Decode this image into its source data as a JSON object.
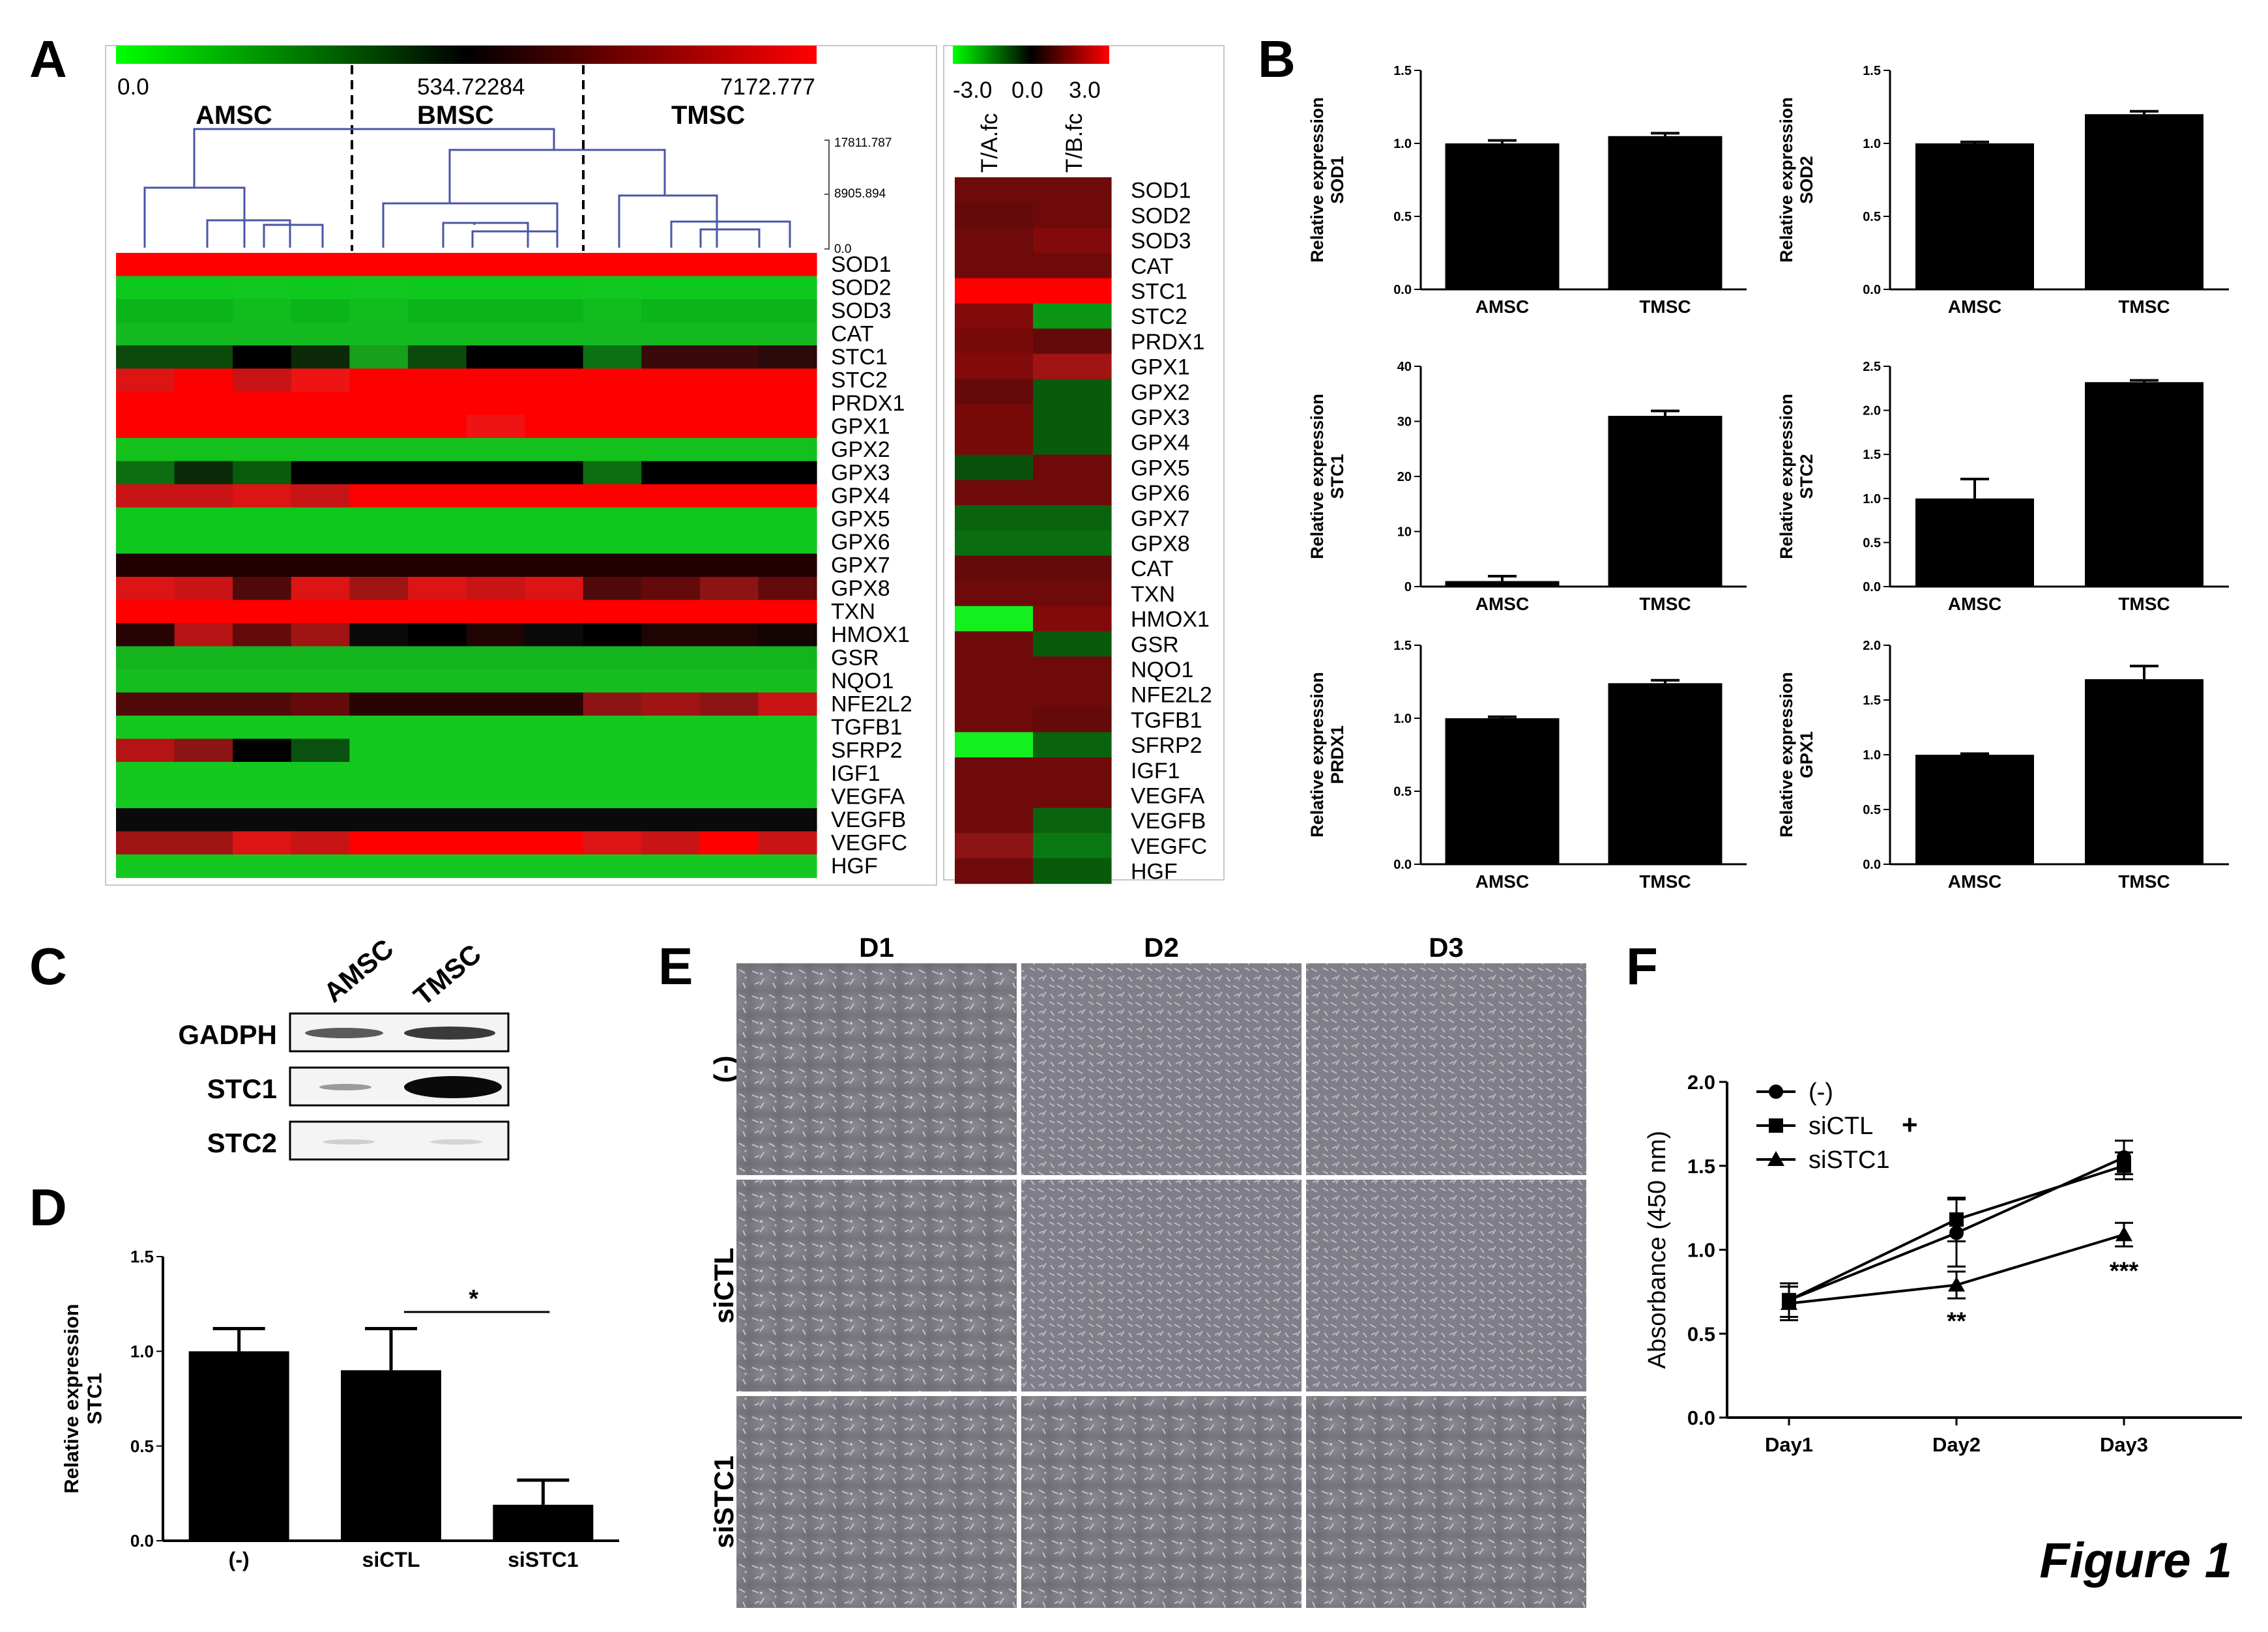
{
  "figure_label": "Figure 1",
  "panels": {
    "A": "A",
    "B": "B",
    "C": "C",
    "D": "D",
    "E": "E",
    "F": "F"
  },
  "panel_a": {
    "colorbar_labels": [
      "0.0",
      "534.72284",
      "7172.777"
    ],
    "groups": [
      "AMSC",
      "BMSC",
      "TMSC"
    ],
    "dendro_scale": [
      "17811.787",
      "8905.894",
      "0.0"
    ],
    "genes": [
      "SOD1",
      "SOD2",
      "SOD3",
      "CAT",
      "STC1",
      "STC2",
      "PRDX1",
      "GPX1",
      "GPX2",
      "GPX3",
      "GPX4",
      "GPX5",
      "GPX6",
      "GPX7",
      "GPX8",
      "TXN",
      "HMOX1",
      "GSR",
      "NQO1",
      "NFE2L2",
      "TGFB1",
      "SFRP2",
      "IGF1",
      "VEGFA",
      "VEGFB",
      "VEGFC",
      "HGF"
    ],
    "heatmap_rows": [
      [
        "#ff0000",
        "#ff0000",
        "#ff0000",
        "#ff0000",
        "#ff0000",
        "#ff0000",
        "#ff0000",
        "#ff0000",
        "#ff0000",
        "#ff0000",
        "#ff0000",
        "#ff0000"
      ],
      [
        "#0fc81e",
        "#0fc81e",
        "#10c820",
        "#0fc81e",
        "#10c820",
        "#0fc81e",
        "#0fc81e",
        "#0fc81e",
        "#10c820",
        "#0fc81e",
        "#0fc81e",
        "#0fc81e"
      ],
      [
        "#0ab41a",
        "#0ab41a",
        "#0fbe1e",
        "#0ab41a",
        "#0fbe1e",
        "#0ab41a",
        "#0ab41a",
        "#0ab41a",
        "#0fbe1e",
        "#0ab41a",
        "#0ab41a",
        "#0ab41a"
      ],
      [
        "#14b920",
        "#14b920",
        "#14b920",
        "#14b920",
        "#14b920",
        "#14b920",
        "#14b920",
        "#14b920",
        "#14b920",
        "#14b920",
        "#14b920",
        "#14b920"
      ],
      [
        "#0c4a0c",
        "#0c4a0c",
        "#000000",
        "#0c2a08",
        "#16a01c",
        "#0c4a0c",
        "#000000",
        "#000000",
        "#0a7212",
        "#3a0a0a",
        "#3a0a0a",
        "#2a0a0a"
      ],
      [
        "#dc1414",
        "#ff0000",
        "#c81414",
        "#ee1414",
        "#ff0000",
        "#ff0000",
        "#ff0000",
        "#ff0000",
        "#ff0000",
        "#ff0000",
        "#ff0000",
        "#ff0000"
      ],
      [
        "#ff0000",
        "#ff0000",
        "#ff0000",
        "#ff0000",
        "#ff0000",
        "#ff0000",
        "#ff0000",
        "#ff0000",
        "#ff0000",
        "#ff0000",
        "#ff0000",
        "#ff0000"
      ],
      [
        "#ff0000",
        "#ff0000",
        "#ff0000",
        "#ff0000",
        "#ff0000",
        "#ff0000",
        "#ee1414",
        "#ff0000",
        "#ff0000",
        "#ff0000",
        "#ff0000",
        "#ff0000"
      ],
      [
        "#14c01c",
        "#14c01c",
        "#14c01c",
        "#14c01c",
        "#14c01c",
        "#14c01c",
        "#14c01c",
        "#14c01c",
        "#14c01c",
        "#14c01c",
        "#14c01c",
        "#14c01c"
      ],
      [
        "#0c6e10",
        "#0a2a08",
        "#0a5c0c",
        "#000000",
        "#000000",
        "#000000",
        "#000000",
        "#000000",
        "#0c6e10",
        "#000000",
        "#000000",
        "#000000"
      ],
      [
        "#c81414",
        "#c81414",
        "#dc1414",
        "#c81414",
        "#ff0000",
        "#ff0000",
        "#ff0000",
        "#ff0000",
        "#ff0000",
        "#ff0000",
        "#ff0000",
        "#ff0000"
      ],
      [
        "#0fc81e",
        "#0fc81e",
        "#0fc81e",
        "#0fc81e",
        "#0fc81e",
        "#0fc81e",
        "#0fc81e",
        "#0fc81e",
        "#0fc81e",
        "#0fc81e",
        "#0fc81e",
        "#0fc81e"
      ],
      [
        "#0fc81e",
        "#0fc81e",
        "#0fc81e",
        "#0fc81e",
        "#0fc81e",
        "#0fc81e",
        "#0fc81e",
        "#0fc81e",
        "#0fc81e",
        "#0fc81e",
        "#0fc81e",
        "#0fc81e"
      ],
      [
        "#200000",
        "#200000",
        "#200000",
        "#200000",
        "#200000",
        "#200000",
        "#200000",
        "#200000",
        "#200000",
        "#200000",
        "#200000",
        "#200000"
      ],
      [
        "#dc1414",
        "#c81414",
        "#500a0a",
        "#dc1414",
        "#a01414",
        "#dc1414",
        "#c81414",
        "#dc1414",
        "#500a0a",
        "#640a0a",
        "#8c1414",
        "#640a0a"
      ],
      [
        "#ff0000",
        "#ff0000",
        "#ff0000",
        "#ff0000",
        "#ff0000",
        "#ff0000",
        "#ff0000",
        "#ff0000",
        "#ff0000",
        "#ff0000",
        "#ff0000",
        "#ff0000"
      ],
      [
        "#280404",
        "#b41414",
        "#640a0a",
        "#a01414",
        "#0a0a0a",
        "#000000",
        "#200404",
        "#0a0a0a",
        "#000000",
        "#200404",
        "#200404",
        "#140404"
      ],
      [
        "#14b41e",
        "#14b41e",
        "#14b41e",
        "#14b41e",
        "#14b41e",
        "#14b41e",
        "#14b41e",
        "#14b41e",
        "#14b41e",
        "#14b41e",
        "#14b41e",
        "#14b41e"
      ],
      [
        "#14be1e",
        "#14be1e",
        "#14be1e",
        "#14be1e",
        "#14be1e",
        "#14be1e",
        "#14be1e",
        "#14be1e",
        "#14be1e",
        "#14be1e",
        "#14be1e",
        "#14be1e"
      ],
      [
        "#500a0a",
        "#500a0a",
        "#500a0a",
        "#640a0a",
        "#280404",
        "#280404",
        "#280404",
        "#280404",
        "#8c1414",
        "#a01414",
        "#8c1414",
        "#c81414"
      ],
      [
        "#14c820",
        "#14c820",
        "#14c820",
        "#14c820",
        "#14c820",
        "#14c820",
        "#14c820",
        "#14c820",
        "#14c820",
        "#14c820",
        "#14c820",
        "#14c820"
      ],
      [
        "#b41414",
        "#8c1414",
        "#000000",
        "#0a5010",
        "#14c820",
        "#14c820",
        "#14c820",
        "#14c820",
        "#14c820",
        "#14c820",
        "#14c820",
        "#14c820"
      ],
      [
        "#14c820",
        "#14c820",
        "#14c820",
        "#14c820",
        "#14c820",
        "#14c820",
        "#14c820",
        "#14c820",
        "#14c820",
        "#14c820",
        "#14c820",
        "#14c820"
      ],
      [
        "#14c820",
        "#14c820",
        "#14c820",
        "#14c820",
        "#14c820",
        "#14c820",
        "#14c820",
        "#14c820",
        "#14c820",
        "#14c820",
        "#14c820",
        "#14c820"
      ],
      [
        "#0a0a0a",
        "#0a0a0a",
        "#0a0a0a",
        "#0a0a0a",
        "#0a0a0a",
        "#0a0a0a",
        "#0a0a0a",
        "#0a0a0a",
        "#0a0a0a",
        "#0a0a0a",
        "#0a0a0a",
        "#0a0a0a"
      ],
      [
        "#a01414",
        "#a01414",
        "#dc1414",
        "#c81414",
        "#ff0000",
        "#ff0000",
        "#ff0000",
        "#ff0000",
        "#dc1414",
        "#c81414",
        "#ff0000",
        "#c81414"
      ],
      [
        "#14c820",
        "#14c820",
        "#14c820",
        "#14c820",
        "#14c820",
        "#14c820",
        "#14c820",
        "#14c820",
        "#14c820",
        "#14c820",
        "#14c820",
        "#14c820"
      ]
    ],
    "fc_scale_labels": [
      "-3.0",
      "0.0",
      "3.0"
    ],
    "fc_columns": [
      "T/A.fc",
      "T/B.fc"
    ],
    "fc_genes": [
      "SOD1",
      "SOD2",
      "SOD3",
      "CAT",
      "STC1",
      "STC2",
      "PRDX1",
      "GPX1",
      "GPX2",
      "GPX3",
      "GPX4",
      "GPX5",
      "GPX6",
      "GPX7",
      "GPX8",
      "CAT",
      "TXN",
      "HMOX1",
      "GSR",
      "NQO1",
      "NFE2L2",
      "TGFB1",
      "SFRP2",
      "IGF1",
      "VEGFA",
      "VEGFB",
      "VEGFC",
      "HGF"
    ],
    "fc_rows": [
      [
        "#6e0a0a",
        "#6e0a0a"
      ],
      [
        "#640a0a",
        "#6e0a0a"
      ],
      [
        "#6e0a0a",
        "#820a0a"
      ],
      [
        "#6e0a0a",
        "#6e0a0a"
      ],
      [
        "#ff0000",
        "#ff0000"
      ],
      [
        "#820a0a",
        "#0a9614"
      ],
      [
        "#780a0a",
        "#640a0a"
      ],
      [
        "#820a0a",
        "#a01414"
      ],
      [
        "#640a0a",
        "#0a5a0c"
      ],
      [
        "#780a0a",
        "#0a5a0c"
      ],
      [
        "#780a0a",
        "#0a5a0c"
      ],
      [
        "#0a500c",
        "#6e0a0a"
      ],
      [
        "#6e0a0a",
        "#6e0a0a"
      ],
      [
        "#0a640e",
        "#0a640e"
      ],
      [
        "#0a6e10",
        "#0a6e10"
      ],
      [
        "#640a0a",
        "#640a0a"
      ],
      [
        "#6e0a0a",
        "#6e0a0a"
      ],
      [
        "#14f01e",
        "#820a0a"
      ],
      [
        "#6e0a0a",
        "#0a5a0c"
      ],
      [
        "#6e0a0a",
        "#6e0a0a"
      ],
      [
        "#6e0a0a",
        "#6e0a0a"
      ],
      [
        "#6e0a0a",
        "#640a0a"
      ],
      [
        "#14f01e",
        "#0a640e"
      ],
      [
        "#6e0a0a",
        "#6e0a0a"
      ],
      [
        "#6e0a0a",
        "#6e0a0a"
      ],
      [
        "#6e0a0a",
        "#0a640e"
      ],
      [
        "#8c1414",
        "#0a7812"
      ],
      [
        "#6e0a0a",
        "#0a5a0c"
      ]
    ]
  },
  "panel_b": {
    "charts": [
      {
        "type": "bar",
        "ylabel_line1": "Relative expression",
        "ylabel_line2": "SOD1",
        "categories": [
          "AMSC",
          "TMSC"
        ],
        "values": [
          1.0,
          1.05
        ],
        "errors": [
          0.02,
          0.02
        ],
        "ylim": [
          0,
          1.5
        ],
        "ticks": [
          "0.0",
          "0.5",
          "1.0",
          "1.5"
        ]
      },
      {
        "type": "bar",
        "ylabel_line1": "Relative expression",
        "ylabel_line2": "SOD2",
        "categories": [
          "AMSC",
          "TMSC"
        ],
        "values": [
          1.0,
          1.2
        ],
        "errors": [
          0.01,
          0.02
        ],
        "ylim": [
          0,
          1.5
        ],
        "ticks": [
          "0.0",
          "0.5",
          "1.0",
          "1.5"
        ]
      },
      {
        "type": "bar",
        "ylabel_line1": "Relative expression",
        "ylabel_line2": "STC1",
        "categories": [
          "AMSC",
          "TMSC"
        ],
        "values": [
          1.0,
          31.0
        ],
        "errors": [
          0.9,
          0.9
        ],
        "ylim": [
          0,
          40
        ],
        "ticks": [
          "0",
          "10",
          "20",
          "30",
          "40"
        ]
      },
      {
        "type": "bar",
        "ylabel_line1": "Relative expression",
        "ylabel_line2": "STC2",
        "categories": [
          "AMSC",
          "TMSC"
        ],
        "values": [
          1.0,
          2.32
        ],
        "errors": [
          0.22,
          0.02
        ],
        "ylim": [
          0,
          2.5
        ],
        "ticks": [
          "0.0",
          "0.5",
          "1.0",
          "1.5",
          "2.0",
          "2.5"
        ]
      },
      {
        "type": "bar",
        "ylabel_line1": "Relative expression",
        "ylabel_line2": "PRDX1",
        "categories": [
          "AMSC",
          "TMSC"
        ],
        "values": [
          1.0,
          1.24
        ],
        "errors": [
          0.01,
          0.02
        ],
        "ylim": [
          0,
          1.5
        ],
        "ticks": [
          "0.0",
          "0.5",
          "1.0",
          "1.5"
        ]
      },
      {
        "type": "bar",
        "ylabel_line1": "Relative expression",
        "ylabel_line2": "GPX1",
        "categories": [
          "AMSC",
          "TMSC"
        ],
        "values": [
          1.0,
          1.69
        ],
        "errors": [
          0.01,
          0.12
        ],
        "ylim": [
          0,
          2.0
        ],
        "ticks": [
          "0.0",
          "0.5",
          "1.0",
          "1.5",
          "2.0"
        ]
      }
    ]
  },
  "panel_c": {
    "columns": [
      "AMSC",
      "TMSC"
    ],
    "rows": [
      "GADPH",
      "STC1",
      "STC2"
    ]
  },
  "panel_d": {
    "chart_data": {
      "type": "bar",
      "ylabel_line1": "Relative expression",
      "ylabel_line2": "STC1",
      "categories": [
        "(-)",
        "siCTL",
        "siSTC1"
      ],
      "values": [
        1.0,
        0.9,
        0.19
      ],
      "errors": [
        0.12,
        0.22,
        0.13
      ],
      "ylim": [
        0,
        1.5
      ],
      "ticks": [
        "0.0",
        "0.5",
        "1.0",
        "1.5"
      ],
      "significance": "*"
    }
  },
  "panel_e": {
    "columns": [
      "D1",
      "D2",
      "D3"
    ],
    "rows": [
      "(-)",
      "siCTL",
      "siSTC1"
    ]
  },
  "panel_f": {
    "chart_data": {
      "type": "line",
      "ylabel": "Absorbance (450 nm)",
      "categories": [
        "Day1",
        "Day2",
        "Day3"
      ],
      "ylim": [
        0,
        2.0
      ],
      "ticks": [
        "0.0",
        "0.5",
        "1.0",
        "1.5",
        "2.0"
      ],
      "series": [
        {
          "name": "(-)",
          "marker": "circle",
          "values": [
            0.7,
            1.1,
            1.55
          ],
          "errors": [
            0.1,
            0.2,
            0.1
          ]
        },
        {
          "name": "siCTL",
          "marker": "square",
          "values": [
            0.7,
            1.18,
            1.5
          ],
          "errors": [
            0.1,
            0.13,
            0.08
          ]
        },
        {
          "name": "siSTC1",
          "marker": "triangle",
          "values": [
            0.68,
            0.79,
            1.09
          ],
          "errors": [
            0.1,
            0.08,
            0.07
          ]
        }
      ],
      "legend_extra": "+",
      "annotations": [
        "**",
        "***"
      ]
    }
  }
}
